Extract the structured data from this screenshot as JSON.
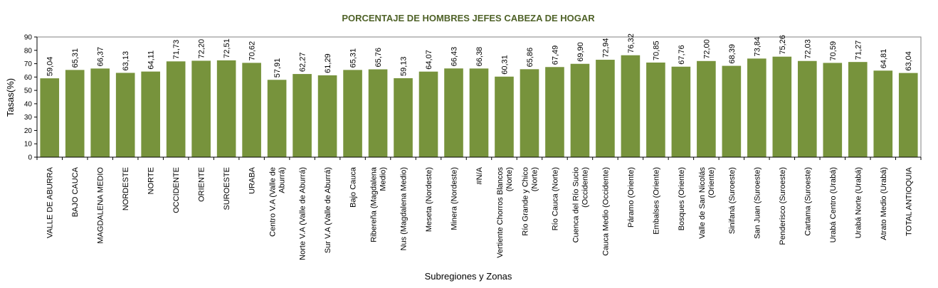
{
  "chart_data": {
    "type": "bar",
    "title": "PORCENTAJE DE HOMBRES JEFES CABEZA DE HOGAR",
    "xlabel": "Subregiones y Zonas",
    "ylabel": "Tasas(%)",
    "ylim": [
      0,
      90
    ],
    "yticks": [
      "0",
      "10",
      "20",
      "30",
      "40",
      "50",
      "60",
      "70",
      "80",
      "90"
    ],
    "grid": false,
    "legend": "none",
    "bar_color": "#77933c",
    "title_color": "#4f6228",
    "categories": [
      "VALLE DE ABURRA",
      "BAJO CAUCA",
      "MAGDALENA MEDIO",
      "NORDESTE",
      "NORTE",
      "OCCIDENTE",
      "ORIENTE",
      "SUROESTE",
      "URABA",
      "Centro V.A (Valle de Aburrá)",
      "Norte V.A (Valle de Aburrá)",
      "Sur V.A (Valle de Aburrá)",
      "Bajo Cauca",
      "Ribereña  (Magdalena Medio)",
      "Nus  (Magdalena Medio)",
      "Meseta  (Nordeste)",
      "Minera  (Nordeste)",
      "#N/A",
      "Vertiente Chorros Blancos (Norte)",
      "Río Grande y Chico (Norte)",
      "Río Cauca  (Norte)",
      "Cuenca del Río Sucio (Occidente)",
      "Cauca Medio  (Occidente)",
      "Páramo  (Oriente)",
      "Embalses  (Oriente)",
      "Bosques  (Oriente)",
      "Valle de San Nicolás (Oriente)",
      "Sinifaná  (Suroeste)",
      "San Juan  (Suroeste)",
      "Penderisco  (Suroeste)",
      "Cartama  (Suroeste)",
      "Urabá Centro  (Urabá)",
      "Urabá Norte  (Urabá)",
      "Atrato Medio  (Urabá)",
      "TOTAL ANTIOQUIA"
    ],
    "category_lines": [
      [
        "VALLE DE ABURRA"
      ],
      [
        "BAJO CAUCA"
      ],
      [
        "MAGDALENA MEDIO"
      ],
      [
        "NORDESTE"
      ],
      [
        "NORTE"
      ],
      [
        "OCCIDENTE"
      ],
      [
        "ORIENTE"
      ],
      [
        "SUROESTE"
      ],
      [
        "URABA"
      ],
      [
        "Centro V.A (Valle de",
        "Aburrá)"
      ],
      [
        "Norte V.A (Valle de Aburrá)"
      ],
      [
        "Sur V.A (Valle de Aburrá)"
      ],
      [
        "Bajo Cauca"
      ],
      [
        "Ribereña  (Magdalena",
        "Medio)"
      ],
      [
        "Nus  (Magdalena Medio)"
      ],
      [
        "Meseta  (Nordeste)"
      ],
      [
        "Minera  (Nordeste)"
      ],
      [
        "#N/A"
      ],
      [
        "Vertiente Chorros Blancos",
        "(Norte)"
      ],
      [
        "Río Grande y Chico",
        "(Norte)"
      ],
      [
        "Río Cauca  (Norte)"
      ],
      [
        "Cuenca del Río Sucio",
        "(Occidente)"
      ],
      [
        "Cauca Medio  (Occidente)"
      ],
      [
        "Páramo  (Oriente)"
      ],
      [
        "Embalses  (Oriente)"
      ],
      [
        "Bosques  (Oriente)"
      ],
      [
        "Valle de San Nicolás",
        "(Oriente)"
      ],
      [
        "Sinifaná  (Suroeste)"
      ],
      [
        "San Juan  (Suroeste)"
      ],
      [
        "Penderisco  (Suroeste)"
      ],
      [
        "Cartama  (Suroeste)"
      ],
      [
        "Urabá Centro  (Urabá)"
      ],
      [
        "Urabá Norte  (Urabá)"
      ],
      [
        "Atrato Medio  (Urabá)"
      ],
      [
        "TOTAL ANTIOQUIA"
      ]
    ],
    "values": [
      59.04,
      65.31,
      66.37,
      63.13,
      64.11,
      71.73,
      72.2,
      72.51,
      70.62,
      57.91,
      62.27,
      61.29,
      65.31,
      65.76,
      59.13,
      64.07,
      66.43,
      66.38,
      60.31,
      65.86,
      67.49,
      69.9,
      72.94,
      76.32,
      70.85,
      67.76,
      72.0,
      68.39,
      73.84,
      75.26,
      72.03,
      70.59,
      71.27,
      64.81,
      63.04
    ],
    "data_labels": [
      "59,04",
      "65,31",
      "66,37",
      "63,13",
      "64,11",
      "71,73",
      "72,20",
      "72,51",
      "70,62",
      "57,91",
      "62,27",
      "61,29",
      "65,31",
      "65,76",
      "59,13",
      "64,07",
      "66,43",
      "66,38",
      "60,31",
      "65,86",
      "67,49",
      "69,90",
      "72,94",
      "76,32",
      "70,85",
      "67,76",
      "72,00",
      "68,39",
      "73,84",
      "75,26",
      "72,03",
      "70,59",
      "71,27",
      "64,81",
      "63,04"
    ]
  }
}
